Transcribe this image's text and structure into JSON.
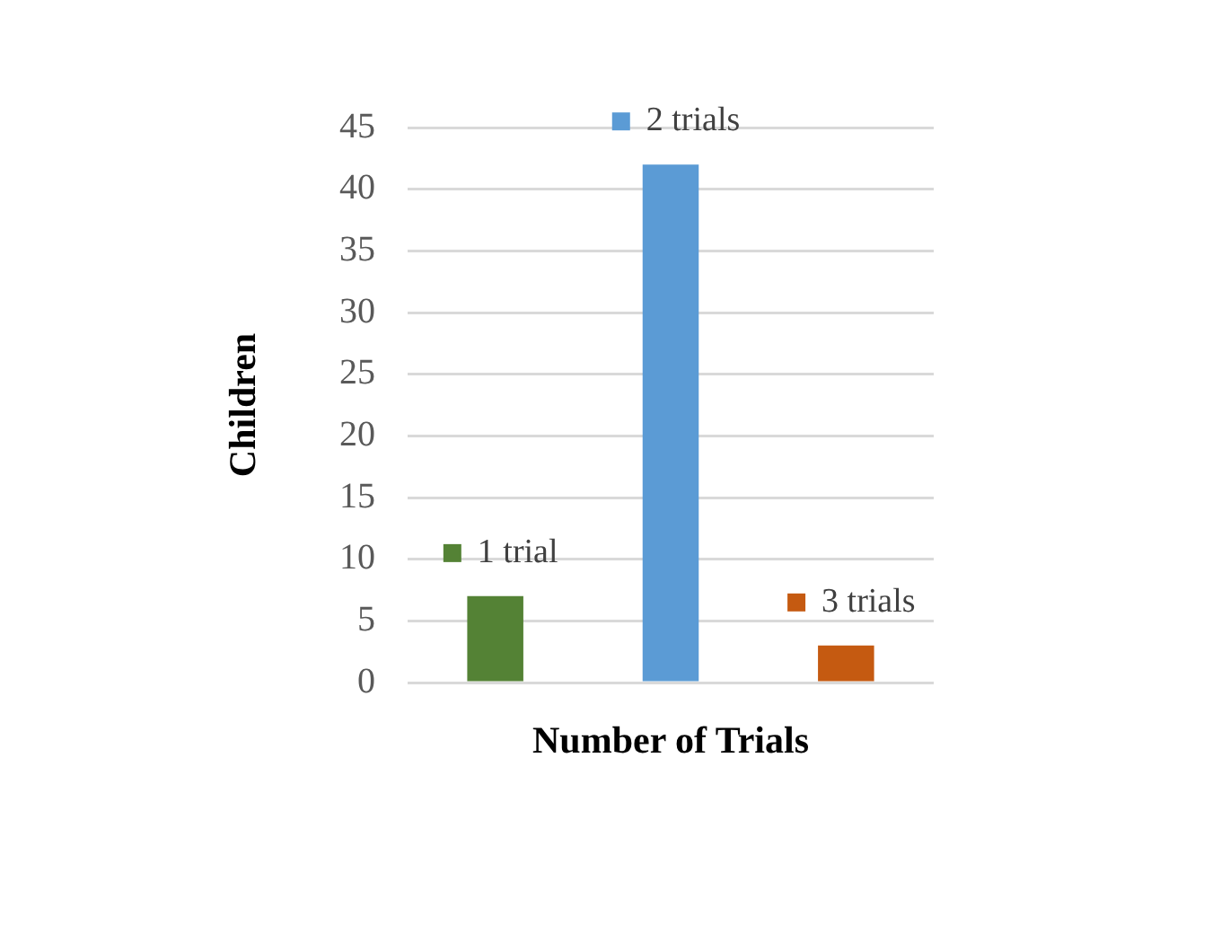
{
  "chart_data": {
    "type": "bar",
    "xlabel": "Number of Trials",
    "ylabel": "Children",
    "categories": [
      null
    ],
    "series": [
      {
        "name": "1 trial",
        "color": "#548235",
        "values": [
          7
        ]
      },
      {
        "name": "2 trials",
        "color": "#5b9bd5",
        "values": [
          42
        ]
      },
      {
        "name": "3 trials",
        "color": "#c55a11",
        "values": [
          3
        ]
      }
    ],
    "ylim": [
      0,
      45
    ],
    "yticks": [
      0,
      5,
      10,
      15,
      20,
      25,
      30,
      35,
      40,
      45
    ],
    "grid": "y",
    "tick_labels": "y",
    "legend": "top"
  }
}
